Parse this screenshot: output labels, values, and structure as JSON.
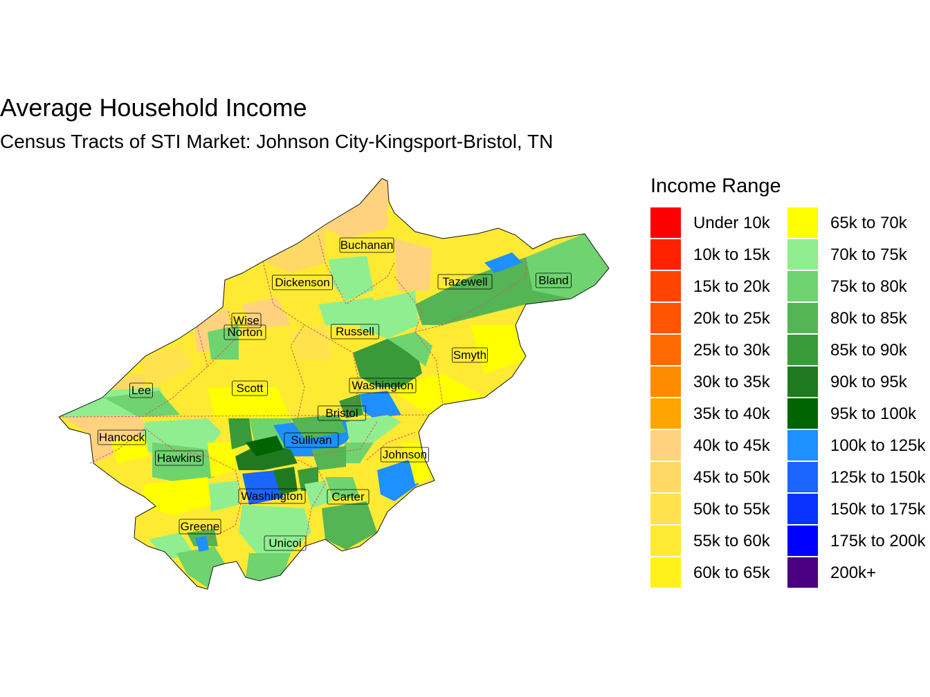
{
  "title": "Average Household Income",
  "subtitle": "Census Tracts of STI Market: Johnson City-Kingsport-Bristol, TN",
  "legend": {
    "title": "Income Range",
    "items": [
      {
        "label": "Under 10k",
        "color": "#FF0000"
      },
      {
        "label": "10k to 15k",
        "color": "#FF2200"
      },
      {
        "label": "15k to 20k",
        "color": "#FF4400"
      },
      {
        "label": "20k to 25k",
        "color": "#FF5500"
      },
      {
        "label": "25k to 30k",
        "color": "#FF6A00"
      },
      {
        "label": "30k to 35k",
        "color": "#FF8C00"
      },
      {
        "label": "35k to 40k",
        "color": "#FFA500"
      },
      {
        "label": "40k to 45k",
        "color": "#FFD27F"
      },
      {
        "label": "45k to 50k",
        "color": "#FFD966"
      },
      {
        "label": "50k to 55k",
        "color": "#FFE24D"
      },
      {
        "label": "55k to 60k",
        "color": "#FFEA33"
      },
      {
        "label": "60k to 65k",
        "color": "#FFF21A"
      },
      {
        "label": "65k to 70k",
        "color": "#FFFF00"
      },
      {
        "label": "70k to 75k",
        "color": "#90EE90"
      },
      {
        "label": "75k to 80k",
        "color": "#6FD36F"
      },
      {
        "label": "80k to 85k",
        "color": "#55B555"
      },
      {
        "label": "85k to 90k",
        "color": "#3A9A3A"
      },
      {
        "label": "90k to 95k",
        "color": "#1F7A1F"
      },
      {
        "label": "95k to 100k",
        "color": "#006400"
      },
      {
        "label": "100k to 125k",
        "color": "#1E90FF"
      },
      {
        "label": "125k to 150k",
        "color": "#1A66FF"
      },
      {
        "label": "150k to 175k",
        "color": "#0A33FF"
      },
      {
        "label": "175k to 200k",
        "color": "#0000FF"
      },
      {
        "label": "200k+",
        "color": "#4B0082"
      }
    ]
  },
  "counties": [
    "Buchanan",
    "Dickenson",
    "Tazewell",
    "Bland",
    "Wise",
    "Norton",
    "Russell",
    "Smyth",
    "Lee",
    "Scott",
    "Washington",
    "Bristol",
    "Hancock",
    "Sullivan",
    "Hawkins",
    "Johnson",
    "Washington",
    "Carter",
    "Greene",
    "Unicoi"
  ],
  "colors": {
    "border": "#333333",
    "state_line": "#E0506E",
    "label_bg": "#FFFFFF"
  }
}
